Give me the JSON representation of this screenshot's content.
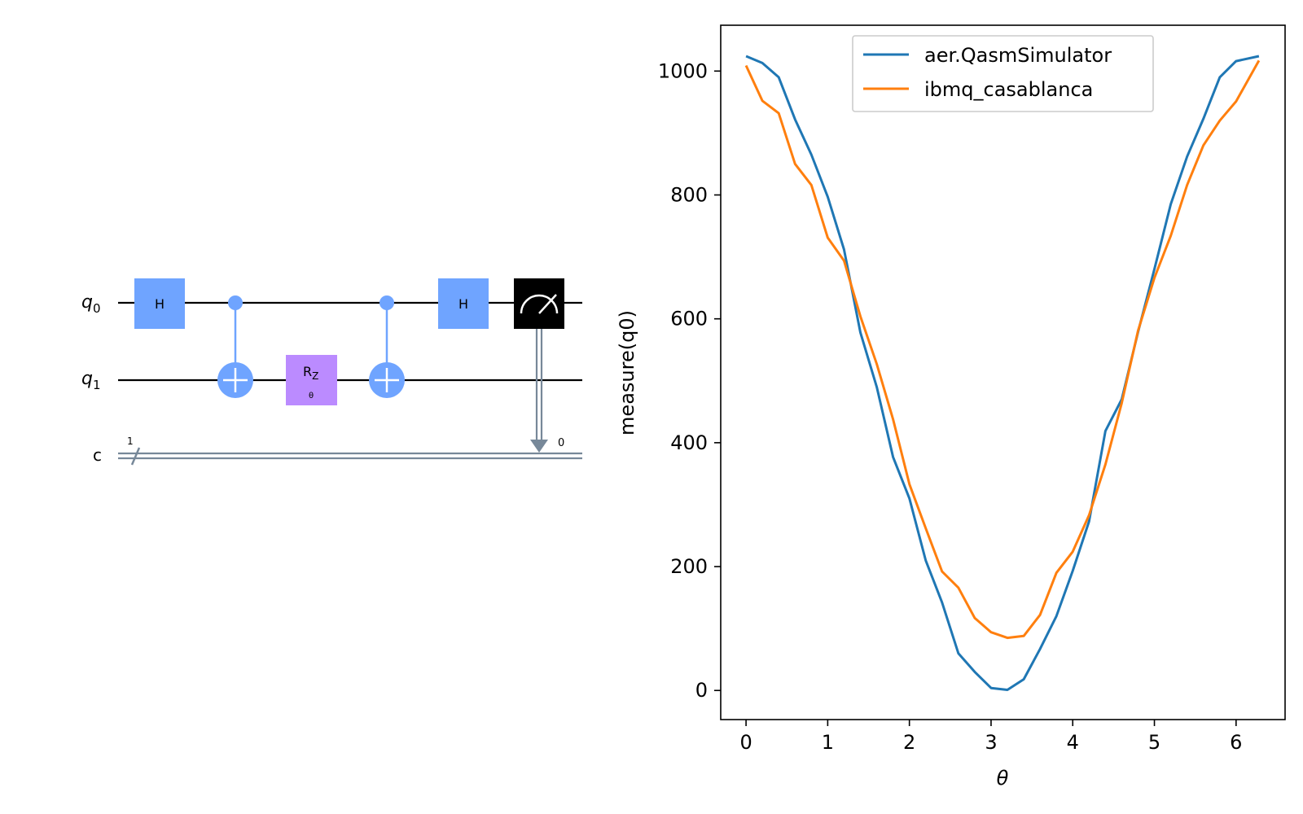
{
  "circuit": {
    "qubits": [
      {
        "name": "q",
        "sub": "0"
      },
      {
        "name": "q",
        "sub": "1"
      }
    ],
    "classical": {
      "name": "c",
      "width_label": "1",
      "bit_label": "0"
    },
    "gates": {
      "h_label": "H",
      "rz_label": "R",
      "rz_sub": "Z",
      "rz_param": "θ"
    },
    "colors": {
      "h_gate": "#6fa4ff",
      "cnot": "#6fa4ff",
      "rz_gate": "#bb8bff",
      "measure": "#000000",
      "classical_wire": "#778899",
      "quantum_wire": "#000000"
    }
  },
  "chart_data": {
    "type": "line",
    "xlabel": "θ",
    "ylabel": "measure(q0)",
    "xlim": [
      -0.31,
      6.6
    ],
    "ylim": [
      -47,
      1074
    ],
    "xticks": [
      0,
      1,
      2,
      3,
      4,
      5,
      6
    ],
    "yticks": [
      0,
      200,
      400,
      600,
      800,
      1000
    ],
    "legend": "upper center",
    "series": [
      {
        "name": "aer.QasmSimulator",
        "color": "#1f77b4",
        "x": [
          0,
          0.2,
          0.4,
          0.6,
          0.8,
          1.0,
          1.2,
          1.4,
          1.6,
          1.8,
          2.0,
          2.2,
          2.4,
          2.6,
          2.8,
          3.0,
          3.2,
          3.4,
          3.6,
          3.8,
          4.0,
          4.2,
          4.4,
          4.6,
          4.8,
          5.0,
          5.2,
          5.4,
          5.6,
          5.8,
          6.0,
          6.28
        ],
        "values": [
          1024,
          1013,
          990,
          922,
          865,
          797,
          712,
          578,
          490,
          377,
          310,
          210,
          142,
          60,
          30,
          4,
          1,
          18,
          67,
          120,
          193,
          273,
          419,
          470,
          579,
          680,
          785,
          862,
          923,
          990,
          1016,
          1024
        ]
      },
      {
        "name": "ibmq_casablanca",
        "color": "#ff7f0e",
        "x": [
          0,
          0.2,
          0.4,
          0.6,
          0.8,
          1.0,
          1.2,
          1.4,
          1.6,
          1.8,
          2.0,
          2.2,
          2.4,
          2.6,
          2.8,
          3.0,
          3.2,
          3.4,
          3.6,
          3.8,
          4.0,
          4.2,
          4.4,
          4.6,
          4.8,
          5.0,
          5.2,
          5.4,
          5.6,
          5.8,
          6.0,
          6.28
        ],
        "values": [
          1009,
          952,
          932,
          850,
          816,
          731,
          694,
          604,
          527,
          438,
          333,
          262,
          192,
          166,
          117,
          94,
          85,
          88,
          122,
          190,
          224,
          283,
          365,
          464,
          581,
          666,
          734,
          816,
          880,
          920,
          951,
          1017
        ]
      }
    ]
  }
}
